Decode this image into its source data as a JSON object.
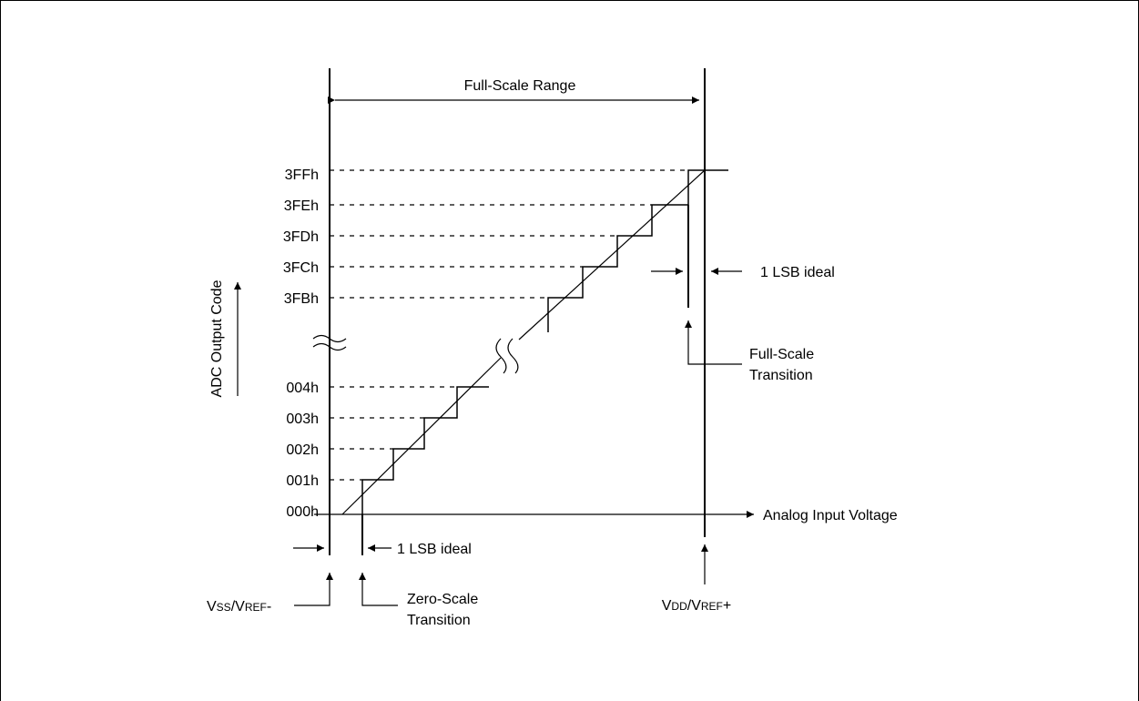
{
  "full_scale_range": "Full-Scale Range",
  "y_axis_label": "ADC Output Code",
  "x_axis_label": "Analog Input Voltage",
  "codes_top": [
    "3FFh",
    "3FEh",
    "3FDh",
    "3FCh",
    "3FBh"
  ],
  "codes_bottom": [
    "004h",
    "003h",
    "002h",
    "001h",
    "000h"
  ],
  "lsb_ideal_top": "1 LSB ideal",
  "lsb_ideal_bottom": "1 LSB ideal",
  "full_scale_transition": [
    "Full-Scale",
    "Transition"
  ],
  "zero_scale_transition": [
    "Zero-Scale",
    "Transition"
  ],
  "vss_label": {
    "v1": "V",
    "s1": "SS",
    "mid": "/V",
    "s2": "REF",
    "tail": "-"
  },
  "vdd_label": {
    "v1": "V",
    "s1": "DD",
    "mid": "/V",
    "s2": "REF",
    "tail": "+"
  }
}
